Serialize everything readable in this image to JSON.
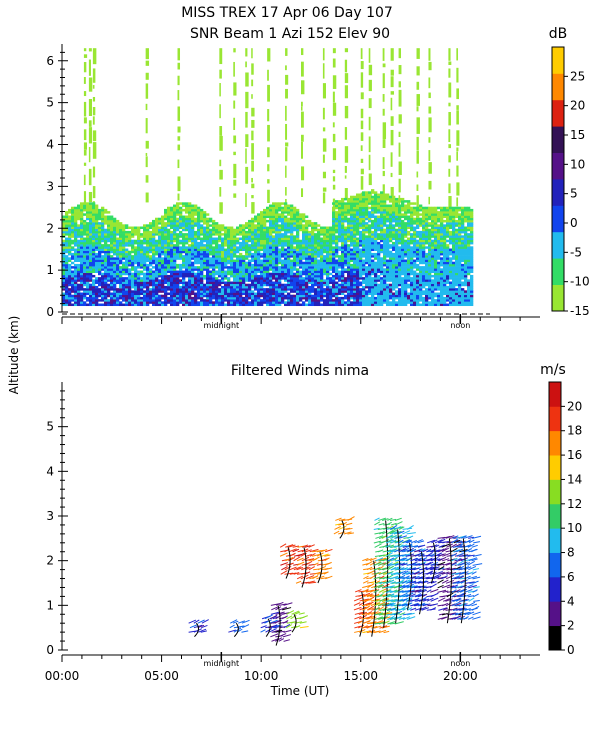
{
  "chart_data": [
    {
      "type": "heatmap",
      "title": "MISS TREX    17 Apr 06 Day 107",
      "subtitle": "SNR Beam 1 Azi 152 Elev 90",
      "ylabel": "Altitude (km)",
      "ylim": [
        0,
        6.4
      ],
      "yticks": [
        "0",
        "1",
        "2",
        "3",
        "4",
        "5",
        "6"
      ],
      "xlim": [
        0,
        24
      ],
      "marker_labels": [
        {
          "label": "midnight",
          "x": 8
        },
        {
          "label": "noon",
          "x": 20
        }
      ],
      "colorbar": {
        "unit": "dB",
        "range": [
          -15,
          30
        ],
        "ticks": [
          "-15",
          "-10",
          "-5",
          "0",
          "5",
          "10",
          "15",
          "20",
          "25"
        ],
        "colors": [
          "#99e633",
          "#33dd66",
          "#22bbee",
          "#1144ee",
          "#2222bb",
          "#551188",
          "#331155",
          "#dd2211",
          "#ff8800",
          "#ffcc00"
        ]
      },
      "data_extent": {
        "x_start": 0,
        "x_end": 20.6,
        "signal_top_km": 2.6,
        "vertical_streaks_to_km": 6.3
      }
    },
    {
      "type": "scatter",
      "title": "Filtered Winds nima",
      "ylabel": "Altitude (km)",
      "xlabel": "Time (UT)",
      "ylim": [
        0,
        6
      ],
      "yticks": [
        "0",
        "1",
        "2",
        "3",
        "4",
        "5"
      ],
      "xlim": [
        0,
        24
      ],
      "xticks": [
        {
          "label": "00:00",
          "x": 0
        },
        {
          "label": "05:00",
          "x": 5
        },
        {
          "label": "10:00",
          "x": 10
        },
        {
          "label": "15:00",
          "x": 15
        },
        {
          "label": "20:00",
          "x": 20
        }
      ],
      "marker_labels": [
        {
          "label": "midnight",
          "x": 8
        },
        {
          "label": "noon",
          "x": 20
        }
      ],
      "colorbar": {
        "unit": "m/s",
        "range": [
          0,
          22
        ],
        "ticks": [
          "0",
          "2",
          "4",
          "6",
          "8",
          "10",
          "12",
          "14",
          "16",
          "18",
          "20"
        ],
        "colors": [
          "#000000",
          "#551188",
          "#2222cc",
          "#1166ee",
          "#22bbee",
          "#33cc66",
          "#88dd22",
          "#ffcc00",
          "#ff8800",
          "#ee3311",
          "#cc1111"
        ]
      },
      "wind_clusters": [
        {
          "x": 6.8,
          "y0": 0.3,
          "y1": 0.6,
          "speed": 4
        },
        {
          "x": 8.8,
          "y0": 0.3,
          "y1": 0.6,
          "speed": 6
        },
        {
          "x": 10.4,
          "y0": 0.3,
          "y1": 0.7,
          "speed": 4
        },
        {
          "x": 10.9,
          "y0": 0.1,
          "y1": 1.0,
          "speed": 3
        },
        {
          "x": 11.7,
          "y0": 0.4,
          "y1": 0.8,
          "speed": 13
        },
        {
          "x": 11.4,
          "y0": 1.6,
          "y1": 2.3,
          "speed": 20
        },
        {
          "x": 12.2,
          "y0": 1.4,
          "y1": 2.3,
          "speed": 20
        },
        {
          "x": 13.0,
          "y0": 1.5,
          "y1": 2.2,
          "speed": 18
        },
        {
          "x": 14.1,
          "y0": 2.5,
          "y1": 2.9,
          "speed": 18
        },
        {
          "x": 15.1,
          "y0": 0.3,
          "y1": 1.3,
          "speed": 20
        },
        {
          "x": 15.7,
          "y0": 0.3,
          "y1": 2.0,
          "speed": 18
        },
        {
          "x": 16.3,
          "y0": 0.5,
          "y1": 2.9,
          "speed": 12
        },
        {
          "x": 16.9,
          "y0": 0.6,
          "y1": 2.7,
          "speed": 9
        },
        {
          "x": 17.5,
          "y0": 0.9,
          "y1": 2.4,
          "speed": 6
        },
        {
          "x": 18.1,
          "y0": 0.8,
          "y1": 2.2,
          "speed": 4
        },
        {
          "x": 18.7,
          "y0": 1.5,
          "y1": 2.4,
          "speed": 5
        },
        {
          "x": 19.5,
          "y0": 0.6,
          "y1": 2.5,
          "speed": 3
        },
        {
          "x": 20.2,
          "y0": 0.6,
          "y1": 2.5,
          "speed": 7
        }
      ]
    }
  ]
}
